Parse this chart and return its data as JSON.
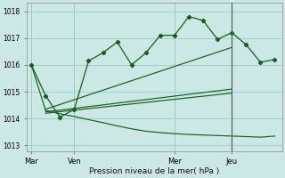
{
  "background_color": "#cce8e4",
  "grid_color": "#99cccc",
  "line_color": "#1a5c1a",
  "marker_color": "#1a5c1a",
  "x_ticks_labels": [
    "Mar",
    "Ven",
    "Mer",
    "Jeu"
  ],
  "x_ticks_pos": [
    0,
    3,
    10,
    14
  ],
  "xlabel": "Pression niveau de la mer( hPa )",
  "ylim": [
    1012.8,
    1018.3
  ],
  "yticks": [
    1013,
    1014,
    1015,
    1016,
    1017,
    1018
  ],
  "series1_x": [
    0,
    1,
    2,
    3,
    4,
    5,
    6,
    7,
    8,
    9,
    10,
    11,
    12,
    13,
    14,
    15,
    16,
    17
  ],
  "series1_y": [
    1016.0,
    1014.85,
    1014.05,
    1014.35,
    1016.15,
    1016.45,
    1016.85,
    1016.0,
    1016.45,
    1017.1,
    1017.1,
    1017.8,
    1017.65,
    1016.95,
    1017.2,
    1016.75,
    1016.1,
    1016.2
  ],
  "line2_x": [
    1,
    14
  ],
  "line2_y": [
    1014.35,
    1016.65
  ],
  "line3_x": [
    1,
    14
  ],
  "line3_y": [
    1014.25,
    1015.1
  ],
  "line4_x": [
    1,
    14
  ],
  "line4_y": [
    1014.2,
    1014.95
  ],
  "line5_x": [
    0,
    1,
    2,
    3,
    4,
    5,
    6,
    7,
    8,
    9,
    10,
    11,
    12,
    13,
    14,
    15,
    16,
    17
  ],
  "line5_y": [
    1016.0,
    1014.3,
    1014.18,
    1014.08,
    1013.96,
    1013.85,
    1013.73,
    1013.62,
    1013.53,
    1013.48,
    1013.44,
    1013.41,
    1013.39,
    1013.37,
    1013.35,
    1013.33,
    1013.31,
    1013.35
  ],
  "vline_x": 14,
  "figsize": [
    3.2,
    2.0
  ],
  "dpi": 100
}
